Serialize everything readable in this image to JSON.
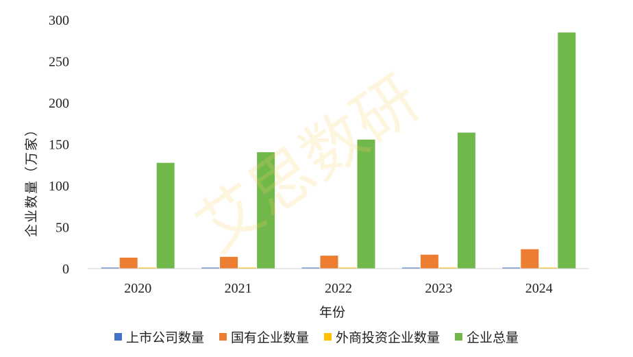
{
  "chart_data": {
    "type": "bar",
    "title": "",
    "xlabel": "年份",
    "ylabel": "企业数量（万家）",
    "categories": [
      "2020",
      "2021",
      "2022",
      "2023",
      "2024"
    ],
    "ylim": [
      0,
      300
    ],
    "yticks": [
      0,
      50,
      100,
      150,
      200,
      250,
      300
    ],
    "grid": false,
    "legend_position": "bottom",
    "series": [
      {
        "name": "上市公司数量",
        "color": "#4472c4",
        "values": [
          0.4,
          0.5,
          0.5,
          0.5,
          0.5
        ]
      },
      {
        "name": "国有企业数量",
        "color": "#ed7d31",
        "values": [
          13.2,
          14.2,
          15.6,
          16.8,
          23.4
        ]
      },
      {
        "name": "外商投资企业数量",
        "color": "#ffc000",
        "values": [
          0.3,
          0.3,
          0.3,
          0.3,
          0.3
        ]
      },
      {
        "name": "企业总量",
        "color": "#70b84a",
        "values": [
          127.6,
          140.4,
          155.6,
          164.0,
          284.8
        ]
      }
    ]
  },
  "watermark": "艾思数研"
}
